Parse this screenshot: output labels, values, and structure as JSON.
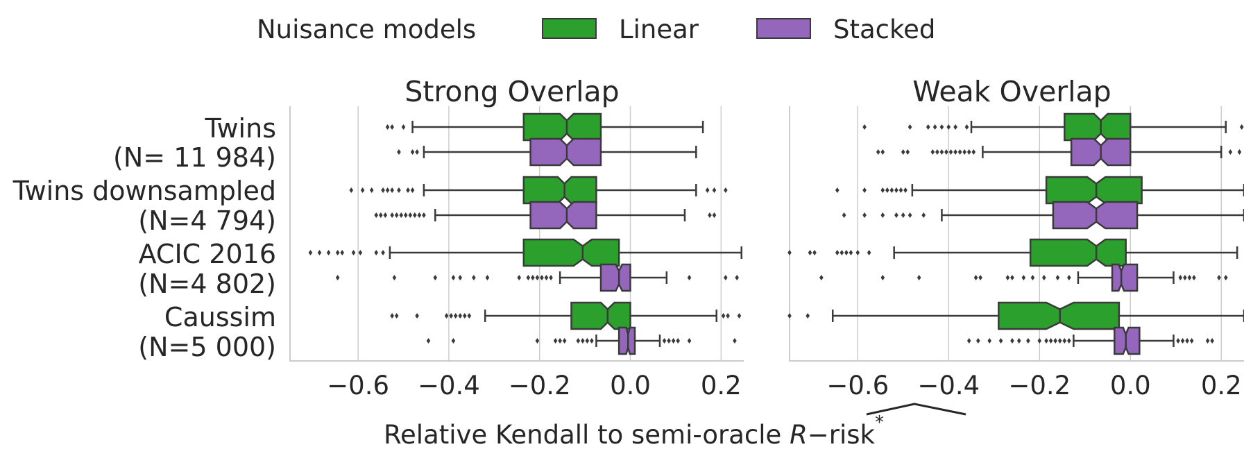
{
  "legend": {
    "title": "Nuisance models",
    "placement": "top-center",
    "entries": [
      {
        "name": "Linear",
        "color": "#2ca02c"
      },
      {
        "name": "Stacked",
        "color": "#9467bd"
      }
    ]
  },
  "xlabel": "Relative Kendall to semi-oracle ",
  "xlabel_math": {
    "symbol": "R",
    "suffix": "−risk",
    "sup": "*",
    "accent": "wide-hat"
  },
  "colors": {
    "linear": "#2ca02c",
    "stacked": "#9467bd",
    "edge": "#3a3a3a",
    "grid": "#cccccc",
    "spine": "#cccccc",
    "text": "#262626"
  },
  "chart_data": [
    {
      "type": "boxplot",
      "orientation": "horizontal",
      "notched": true,
      "title": "Strong Overlap",
      "xlim": [
        -0.75,
        0.25
      ],
      "xticks": [
        -0.6,
        -0.4,
        -0.2,
        0.0,
        0.2
      ],
      "xticklabels": [
        "−0.6",
        "−0.4",
        "−0.2",
        "0.0",
        "0.2"
      ],
      "grid": true,
      "categories": [
        {
          "label": [
            "Twins ",
            "(N= 11 984)"
          ]
        },
        {
          "label": [
            "Twins downsampled",
            "(N=4 794)"
          ]
        },
        {
          "label": [
            "ACIC 2016",
            "(N=4 802)"
          ]
        },
        {
          "label": [
            "Caussim",
            "(N=5 000)"
          ]
        }
      ],
      "series": [
        {
          "name": "Linear",
          "boxes": [
            {
              "whislo": -0.48,
              "q1": -0.235,
              "med": -0.14,
              "q3": -0.065,
              "whishi": 0.16,
              "notch": [
                -0.155,
                -0.125
              ],
              "fliers": [
                -0.535,
                -0.525,
                -0.5
              ]
            },
            {
              "whislo": -0.455,
              "q1": -0.235,
              "med": -0.145,
              "q3": -0.075,
              "whishi": 0.145,
              "notch": [
                -0.16,
                -0.13
              ],
              "fliers": [
                -0.615,
                -0.59,
                -0.57,
                -0.545,
                -0.535,
                -0.525,
                -0.51,
                -0.49,
                -0.48,
                0.17,
                0.185,
                0.21
              ]
            },
            {
              "whislo": -0.53,
              "q1": -0.235,
              "med": -0.105,
              "q3": -0.025,
              "whishi": 0.245,
              "notch": [
                -0.125,
                -0.085
              ],
              "fliers": [
                -0.705,
                -0.685,
                -0.665,
                -0.645,
                -0.635,
                -0.61,
                -0.595,
                -0.56,
                -0.545
              ]
            },
            {
              "whislo": -0.32,
              "q1": -0.13,
              "med": -0.05,
              "q3": 0.0,
              "whishi": 0.19,
              "notch": [
                -0.065,
                -0.035
              ],
              "fliers": [
                -0.525,
                -0.515,
                -0.47,
                -0.405,
                -0.395,
                -0.385,
                -0.375,
                -0.365,
                -0.355,
                0.205,
                0.215,
                0.24
              ]
            }
          ]
        },
        {
          "name": "Stacked",
          "boxes": [
            {
              "whislo": -0.455,
              "q1": -0.22,
              "med": -0.14,
              "q3": -0.065,
              "whishi": 0.145,
              "notch": [
                -0.155,
                -0.125
              ],
              "fliers": [
                -0.51,
                -0.48,
                -0.47
              ]
            },
            {
              "whislo": -0.43,
              "q1": -0.22,
              "med": -0.14,
              "q3": -0.075,
              "whishi": 0.12,
              "notch": [
                -0.155,
                -0.125
              ],
              "fliers": [
                -0.56,
                -0.55,
                -0.54,
                -0.525,
                -0.515,
                -0.505,
                -0.495,
                -0.485,
                -0.475,
                -0.465,
                -0.455,
                0.175,
                0.185
              ]
            },
            {
              "whislo": -0.155,
              "q1": -0.065,
              "med": -0.025,
              "q3": 0.0,
              "whishi": 0.08,
              "notch": [
                -0.032,
                -0.018
              ],
              "fliers": [
                -0.645,
                -0.52,
                -0.43,
                -0.39,
                -0.375,
                -0.345,
                -0.315,
                -0.245,
                -0.225,
                -0.215,
                -0.205,
                -0.195,
                -0.185,
                -0.175,
                0.13,
                0.21,
                0.235
              ]
            },
            {
              "whislo": -0.075,
              "q1": -0.025,
              "med": -0.005,
              "q3": 0.01,
              "whishi": 0.065,
              "notch": [
                -0.009,
                -0.001
              ],
              "fliers": [
                -0.445,
                -0.39,
                -0.205,
                -0.165,
                -0.155,
                -0.145,
                -0.115,
                -0.105,
                -0.095,
                -0.085,
                0.075,
                0.085,
                0.095,
                0.105,
                0.13,
                0.23
              ]
            }
          ]
        }
      ]
    },
    {
      "type": "boxplot",
      "orientation": "horizontal",
      "notched": true,
      "title": "Weak Overlap",
      "xlim": [
        -0.75,
        0.25
      ],
      "xticks": [
        -0.6,
        -0.4,
        -0.2,
        0.0,
        0.2
      ],
      "xticklabels": [
        "−0.6",
        "−0.4",
        "−0.2",
        "0.0",
        "0.2"
      ],
      "grid": true,
      "categories": [
        {
          "label": [
            "Twins ",
            "(N= 11 984)"
          ]
        },
        {
          "label": [
            "Twins downsampled",
            "(N=4 794)"
          ]
        },
        {
          "label": [
            "ACIC 2016",
            "(N=4 802)"
          ]
        },
        {
          "label": [
            "Caussim",
            "(N=5 000)"
          ]
        }
      ],
      "series": [
        {
          "name": "Linear",
          "boxes": [
            {
              "whislo": -0.35,
              "q1": -0.145,
              "med": -0.065,
              "q3": 0.0,
              "whishi": 0.21,
              "notch": [
                -0.08,
                -0.05
              ],
              "fliers": [
                -0.585,
                -0.485,
                -0.445,
                -0.43,
                -0.415,
                -0.4,
                -0.385,
                -0.36,
                0.245
              ]
            },
            {
              "whislo": -0.48,
              "q1": -0.185,
              "med": -0.075,
              "q3": 0.025,
              "whishi": 0.25,
              "notch": [
                -0.095,
                -0.055
              ],
              "fliers": [
                -0.645,
                -0.585,
                -0.545,
                -0.535,
                -0.525,
                -0.515,
                -0.505,
                -0.495
              ]
            },
            {
              "whislo": -0.52,
              "q1": -0.22,
              "med": -0.075,
              "q3": -0.01,
              "whishi": 0.235,
              "notch": [
                -0.095,
                -0.055
              ],
              "fliers": [
                -0.75,
                -0.705,
                -0.695,
                -0.645,
                -0.635,
                -0.625,
                -0.615,
                -0.6,
                -0.575
              ]
            },
            {
              "whislo": -0.655,
              "q1": -0.29,
              "med": -0.155,
              "q3": -0.025,
              "whishi": 0.25,
              "notch": [
                -0.185,
                -0.125
              ],
              "fliers": [
                -0.75,
                -0.71
              ]
            }
          ]
        },
        {
          "name": "Stacked",
          "boxes": [
            {
              "whislo": -0.325,
              "q1": -0.13,
              "med": -0.065,
              "q3": 0.0,
              "whishi": 0.2,
              "notch": [
                -0.08,
                -0.05
              ],
              "fliers": [
                -0.555,
                -0.545,
                -0.5,
                -0.49,
                -0.435,
                -0.425,
                -0.415,
                -0.405,
                -0.395,
                -0.385,
                -0.375,
                -0.365,
                -0.355,
                -0.345,
                0.22,
                0.24
              ]
            },
            {
              "whislo": -0.415,
              "q1": -0.17,
              "med": -0.075,
              "q3": 0.015,
              "whishi": 0.25,
              "notch": [
                -0.095,
                -0.055
              ],
              "fliers": [
                -0.63,
                -0.585,
                -0.545,
                -0.515,
                -0.5,
                -0.485,
                -0.455
              ]
            },
            {
              "whislo": -0.115,
              "q1": -0.04,
              "med": -0.02,
              "q3": 0.015,
              "whishi": 0.095,
              "notch": [
                -0.026,
                -0.014
              ],
              "fliers": [
                -0.68,
                -0.545,
                -0.465,
                -0.34,
                -0.33,
                -0.27,
                -0.26,
                -0.235,
                -0.215,
                -0.19,
                -0.16,
                -0.135,
                0.11,
                0.12,
                0.13,
                0.14,
                0.195,
                0.21
              ]
            },
            {
              "whislo": -0.125,
              "q1": -0.035,
              "med": -0.01,
              "q3": 0.02,
              "whishi": 0.095,
              "notch": [
                -0.016,
                -0.004
              ],
              "fliers": [
                -0.355,
                -0.335,
                -0.31,
                -0.285,
                -0.26,
                -0.245,
                -0.225,
                -0.2,
                -0.185,
                -0.175,
                -0.165,
                -0.155,
                -0.145,
                -0.135,
                0.105,
                0.115,
                0.125,
                0.135,
                0.17,
                0.18
              ]
            }
          ]
        }
      ]
    }
  ]
}
